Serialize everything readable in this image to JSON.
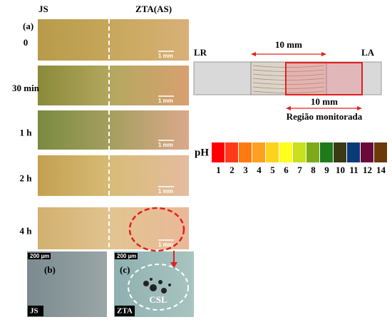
{
  "panel_a": {
    "label": "(a)",
    "columns": [
      "JS",
      "ZTA(AS)"
    ],
    "rows": [
      {
        "time": "0",
        "scale": "1 mm"
      },
      {
        "time": "30 min",
        "scale": "1 mm"
      },
      {
        "time": "1 h",
        "scale": "1 mm"
      },
      {
        "time": "2 h",
        "scale": "1 mm"
      },
      {
        "time": "4 h",
        "scale": "1 mm"
      }
    ]
  },
  "schematic": {
    "left": "LR",
    "right": "LA",
    "top_dimension": "10 mm",
    "bottom_dimension": "10 mm",
    "caption": "Região monitorada"
  },
  "ph_scale": {
    "label": "pH",
    "swatches": [
      {
        "label": "1",
        "color": "#ff0000"
      },
      {
        "label": "2",
        "color": "#ff3a1a"
      },
      {
        "label": "3",
        "color": "#ff7a10"
      },
      {
        "label": "4",
        "color": "#ffa020"
      },
      {
        "label": "5",
        "color": "#ffd21e"
      },
      {
        "label": "6",
        "color": "#ffff20"
      },
      {
        "label": "7",
        "color": "#c8e020"
      },
      {
        "label": "8",
        "color": "#7caa1a"
      },
      {
        "label": "9",
        "color": "#1f7a1a"
      },
      {
        "label": "10",
        "color": "#3a3a14"
      },
      {
        "label": "11",
        "color": "#0a3a78"
      },
      {
        "label": "12",
        "color": "#6a0a3a"
      },
      {
        "label": "14",
        "color": "#6a3a0a"
      }
    ]
  },
  "panel_b": {
    "label": "(b)",
    "scale": "200 µm",
    "tag": "JS"
  },
  "panel_c": {
    "label": "(c)",
    "scale": "200 µm",
    "tag": "ZTA",
    "annotation": "CSL"
  }
}
